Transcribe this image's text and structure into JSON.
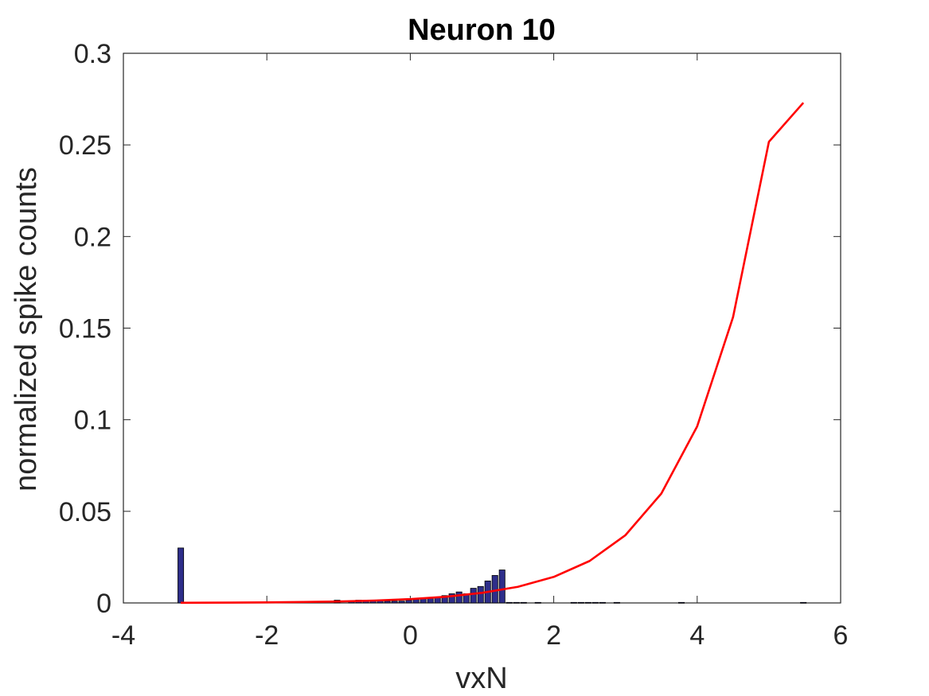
{
  "chart_data": {
    "type": "bar",
    "title": "Neuron 10",
    "xlabel": "vxN",
    "ylabel": "normalized spike counts",
    "xlim": [
      -4,
      6
    ],
    "ylim": [
      0,
      0.3
    ],
    "xticks": [
      -4,
      -2,
      0,
      2,
      4,
      6
    ],
    "xtick_labels": [
      "-4",
      "-2",
      "0",
      "2",
      "4",
      "6"
    ],
    "yticks": [
      0,
      0.05,
      0.1,
      0.15,
      0.2,
      0.25,
      0.3
    ],
    "ytick_labels": [
      "0",
      "0.05",
      "0.1",
      "0.15",
      "0.2",
      "0.25",
      "0.3"
    ],
    "grid": false,
    "bar_width": 0.08,
    "colors": {
      "bars": "#2e2e8a",
      "bar_edge": "#000000",
      "curve": "#ff0000",
      "axes": "#262626"
    },
    "series": [
      {
        "type": "bar",
        "x": [
          -3.2,
          -1.02,
          -0.82,
          -0.72,
          -0.62,
          -0.52,
          -0.42,
          -0.32,
          -0.22,
          -0.12,
          -0.02,
          0.08,
          0.18,
          0.28,
          0.38,
          0.48,
          0.58,
          0.68,
          0.78,
          0.88,
          0.98,
          1.08,
          1.18,
          1.28,
          1.38,
          1.48,
          1.58,
          1.78,
          2.28,
          2.38,
          2.48,
          2.58,
          2.68,
          2.88,
          3.78,
          5.48
        ],
        "values": [
          0.03,
          0.0015,
          0.001,
          0.0015,
          0.001,
          0.0015,
          0.0015,
          0.001,
          0.001,
          0.001,
          0.0015,
          0.002,
          0.0025,
          0.0025,
          0.003,
          0.004,
          0.005,
          0.006,
          0.005,
          0.008,
          0.009,
          0.012,
          0.015,
          0.018,
          0.0003,
          0.0003,
          0.0003,
          0.0003,
          0.0003,
          0.0003,
          0.0003,
          0.0003,
          0.0003,
          0.0003,
          0.0003,
          0.0003
        ]
      },
      {
        "type": "line",
        "x": [
          -3.2,
          -2.5,
          -2.0,
          -1.5,
          -1.0,
          -0.5,
          0.0,
          0.5,
          1.0,
          1.5,
          2.0,
          2.5,
          3.0,
          3.5,
          4.0,
          4.5,
          5.0,
          5.48
        ],
        "values": [
          0.0001,
          0.0002,
          0.0003,
          0.0005,
          0.0008,
          0.0013,
          0.0021,
          0.0034,
          0.0055,
          0.0088,
          0.0142,
          0.0229,
          0.037,
          0.0597,
          0.0964,
          0.156,
          0.2517,
          0.273
        ]
      }
    ]
  }
}
